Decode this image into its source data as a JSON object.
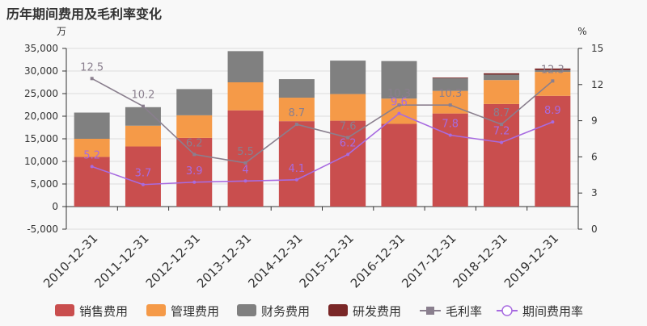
{
  "chart_data": {
    "type": "bar",
    "title": "历年期间费用及毛利率变化",
    "left_axis_unit": "万",
    "right_axis_unit": "%",
    "categories": [
      "2010-12-31",
      "2011-12-31",
      "2012-12-31",
      "2013-12-31",
      "2014-12-31",
      "2015-12-31",
      "2016-12-31",
      "2017-12-31",
      "2018-12-31",
      "2019-12-31"
    ],
    "y_left": {
      "min": -5000,
      "max": 35000,
      "ticks": [
        "-5,000",
        "0",
        "5,000",
        "10,000",
        "15,000",
        "20,000",
        "25,000",
        "30,000",
        "35,000"
      ]
    },
    "y_right": {
      "min": 0,
      "max": 15,
      "ticks": [
        "0",
        "3",
        "6",
        "9",
        "12",
        "15"
      ]
    },
    "grid": true,
    "legend_position": "bottom",
    "series": [
      {
        "name": "销售费用",
        "kind": "bar",
        "color": "#c94e4e",
        "values": [
          11000,
          13300,
          15200,
          21300,
          18900,
          19000,
          18300,
          20600,
          22700,
          24500
        ]
      },
      {
        "name": "管理费用",
        "kind": "bar",
        "color": "#f59a48",
        "values": [
          4000,
          4600,
          5000,
          6200,
          5200,
          5900,
          5600,
          5000,
          5300,
          5300
        ]
      },
      {
        "name": "财务费用",
        "kind": "bar",
        "color": "#808080",
        "values": [
          5800,
          4100,
          5800,
          6900,
          4100,
          7400,
          8300,
          2800,
          1200,
          400
        ]
      },
      {
        "name": "研发费用",
        "kind": "bar",
        "color": "#7a2727",
        "values": [
          0,
          0,
          0,
          0,
          0,
          0,
          0,
          150,
          300,
          350
        ]
      },
      {
        "name": "毛利率",
        "kind": "line",
        "axis": "right",
        "color": "#8a7f8e",
        "marker": "square",
        "values": [
          12.5,
          10.2,
          6.2,
          5.5,
          8.7,
          7.6,
          10.3,
          10.3,
          8.7,
          12.3
        ]
      },
      {
        "name": "期间费用率",
        "kind": "line",
        "axis": "right",
        "color": "#a86be0",
        "marker": "circle",
        "values": [
          5.2,
          3.7,
          3.9,
          4,
          4.1,
          6.2,
          9.6,
          7.8,
          7.2,
          8.9
        ]
      }
    ]
  }
}
